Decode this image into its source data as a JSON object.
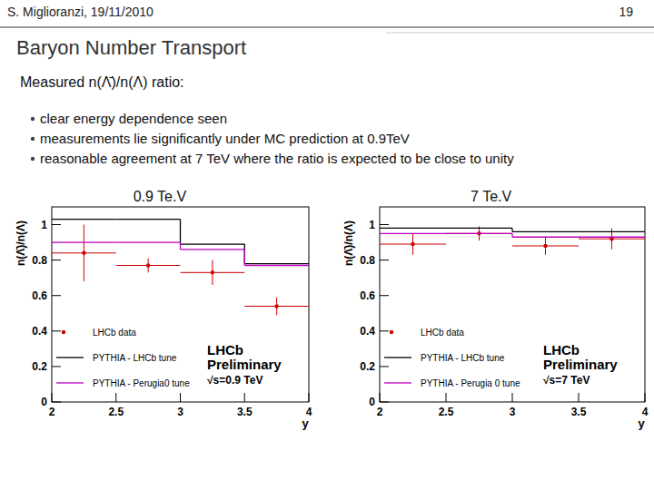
{
  "slide": {
    "header": "S. Miglioranzi, 19/11/2010",
    "page": "19",
    "title": "Baryon Number Transport",
    "subtitle": "Measured n(Λ̄)/n(Λ) ratio:",
    "bullets": [
      "clear energy dependence seen",
      "measurements lie significantly  under MC prediction at 0.9TeV",
      "reasonable agreement at 7 TeV where the ratio is expected to be close to unity"
    ]
  },
  "chart_data": [
    {
      "type": "scatter",
      "title": "0.9 Te.V",
      "x_label": "y",
      "y_label": "n(Λ̄)/n(Λ)",
      "xlim": [
        2,
        4
      ],
      "xticks": [
        2,
        2.5,
        3,
        3.5,
        4
      ],
      "ylim": [
        0,
        1.1
      ],
      "yticks": [
        0,
        0.2,
        0.4,
        0.6,
        0.8,
        1
      ],
      "annotations": [
        "LHCb",
        "Preliminary",
        "√s=0.9 TeV"
      ],
      "legend": "lower left",
      "series": [
        {
          "name": "LHCb data",
          "type": "scatter",
          "color": "#cc0000",
          "marker": "circle",
          "x": [
            2.25,
            2.75,
            3.25,
            3.75
          ],
          "values": [
            0.84,
            0.77,
            0.73,
            0.54
          ],
          "errors": [
            0.16,
            0.04,
            0.07,
            0.05
          ],
          "xerr": [
            0.25,
            0.25,
            0.25,
            0.25
          ]
        },
        {
          "name": "PYTHIA - LHCb tune",
          "type": "step",
          "color": "#000000",
          "bins": [
            2,
            2.5,
            3,
            3.5,
            4
          ],
          "values": [
            1.03,
            1.03,
            0.89,
            0.78
          ]
        },
        {
          "name": "PYTHIA - Perugia0 tune",
          "type": "step",
          "color": "#bb00bb",
          "bins": [
            2,
            2.5,
            3,
            3.5,
            4
          ],
          "values": [
            0.9,
            0.9,
            0.86,
            0.77
          ]
        }
      ]
    },
    {
      "type": "scatter",
      "title": "7 Te.V",
      "x_label": "y",
      "y_label": "n(Λ̄)/n(Λ)",
      "xlim": [
        2,
        4
      ],
      "xticks": [
        2,
        2.5,
        3,
        3.5,
        4
      ],
      "ylim": [
        0,
        1.1
      ],
      "yticks": [
        0,
        0.2,
        0.4,
        0.6,
        0.8,
        1
      ],
      "annotations": [
        "LHCb",
        "Preliminary",
        "√s=7 TeV"
      ],
      "legend": "lower left",
      "series": [
        {
          "name": "LHCb data",
          "type": "scatter",
          "color": "#cc0000",
          "marker": "circle",
          "x": [
            2.25,
            2.75,
            3.25,
            3.75
          ],
          "values": [
            0.89,
            0.95,
            0.88,
            0.92
          ],
          "errors": [
            0.06,
            0.04,
            0.05,
            0.06
          ],
          "xerr": [
            0.25,
            0.25,
            0.25,
            0.25
          ]
        },
        {
          "name": "PYTHIA - LHCb tune",
          "type": "step",
          "color": "#000000",
          "bins": [
            2,
            2.5,
            3,
            3.5,
            4
          ],
          "values": [
            0.98,
            0.98,
            0.96,
            0.96
          ]
        },
        {
          "name": "PYTHIA - Perugia 0 tune",
          "type": "step",
          "color": "#bb00bb",
          "bins": [
            2,
            2.5,
            3,
            3.5,
            4
          ],
          "values": [
            0.95,
            0.95,
            0.93,
            0.93
          ]
        }
      ]
    }
  ]
}
